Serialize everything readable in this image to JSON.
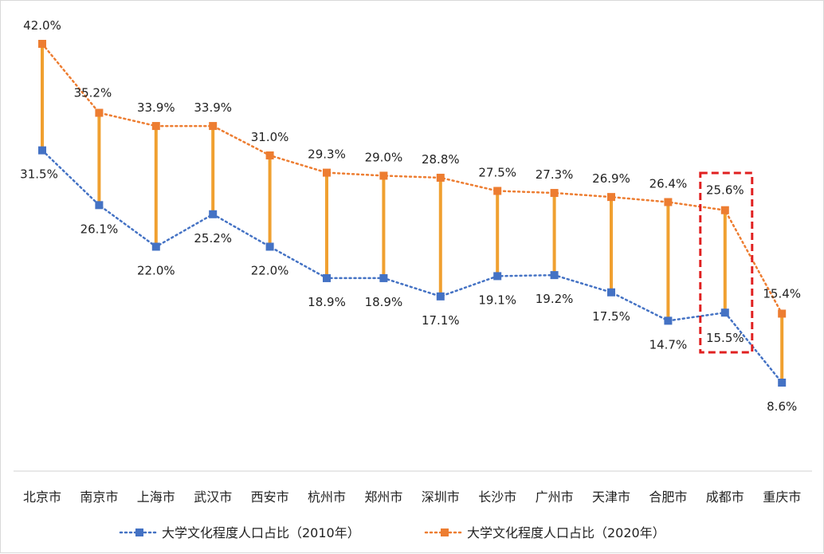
{
  "chart_data": {
    "type": "line",
    "categories": [
      "北京市",
      "南京市",
      "上海市",
      "武汉市",
      "西安市",
      "杭州市",
      "郑州市",
      "深圳市",
      "长沙市",
      "广州市",
      "天津市",
      "合肥市",
      "成都市",
      "重庆市"
    ],
    "series": [
      {
        "name": "大学文化程度人口占比（2010年）",
        "values": [
          31.5,
          26.1,
          22.0,
          25.2,
          22.0,
          18.9,
          18.9,
          17.1,
          19.1,
          19.2,
          17.5,
          14.7,
          15.5,
          8.6
        ],
        "labels": [
          "31.5%",
          "26.1%",
          "22.0%",
          "25.2%",
          "22.0%",
          "18.9%",
          "18.9%",
          "17.1%",
          "19.1%",
          "19.2%",
          "17.5%",
          "14.7%",
          "15.5%",
          "8.6%"
        ],
        "color": "#4472c4"
      },
      {
        "name": "大学文化程度人口占比（2020年）",
        "values": [
          42.0,
          35.2,
          33.9,
          33.9,
          31.0,
          29.3,
          29.0,
          28.8,
          27.5,
          27.3,
          26.9,
          26.4,
          25.6,
          15.4
        ],
        "labels": [
          "42.0%",
          "35.2%",
          "33.9%",
          "33.9%",
          "31.0%",
          "29.3%",
          "29.0%",
          "28.8%",
          "27.5%",
          "27.3%",
          "26.9%",
          "26.4%",
          "25.6%",
          "15.4%"
        ],
        "color": "#ed7d31"
      }
    ],
    "ylim": [
      0,
      45
    ],
    "grid": false,
    "legend_position": "bottom",
    "highlight_category": "成都市",
    "connector_color": "#f0a030",
    "highlight_color": "#e02020"
  }
}
